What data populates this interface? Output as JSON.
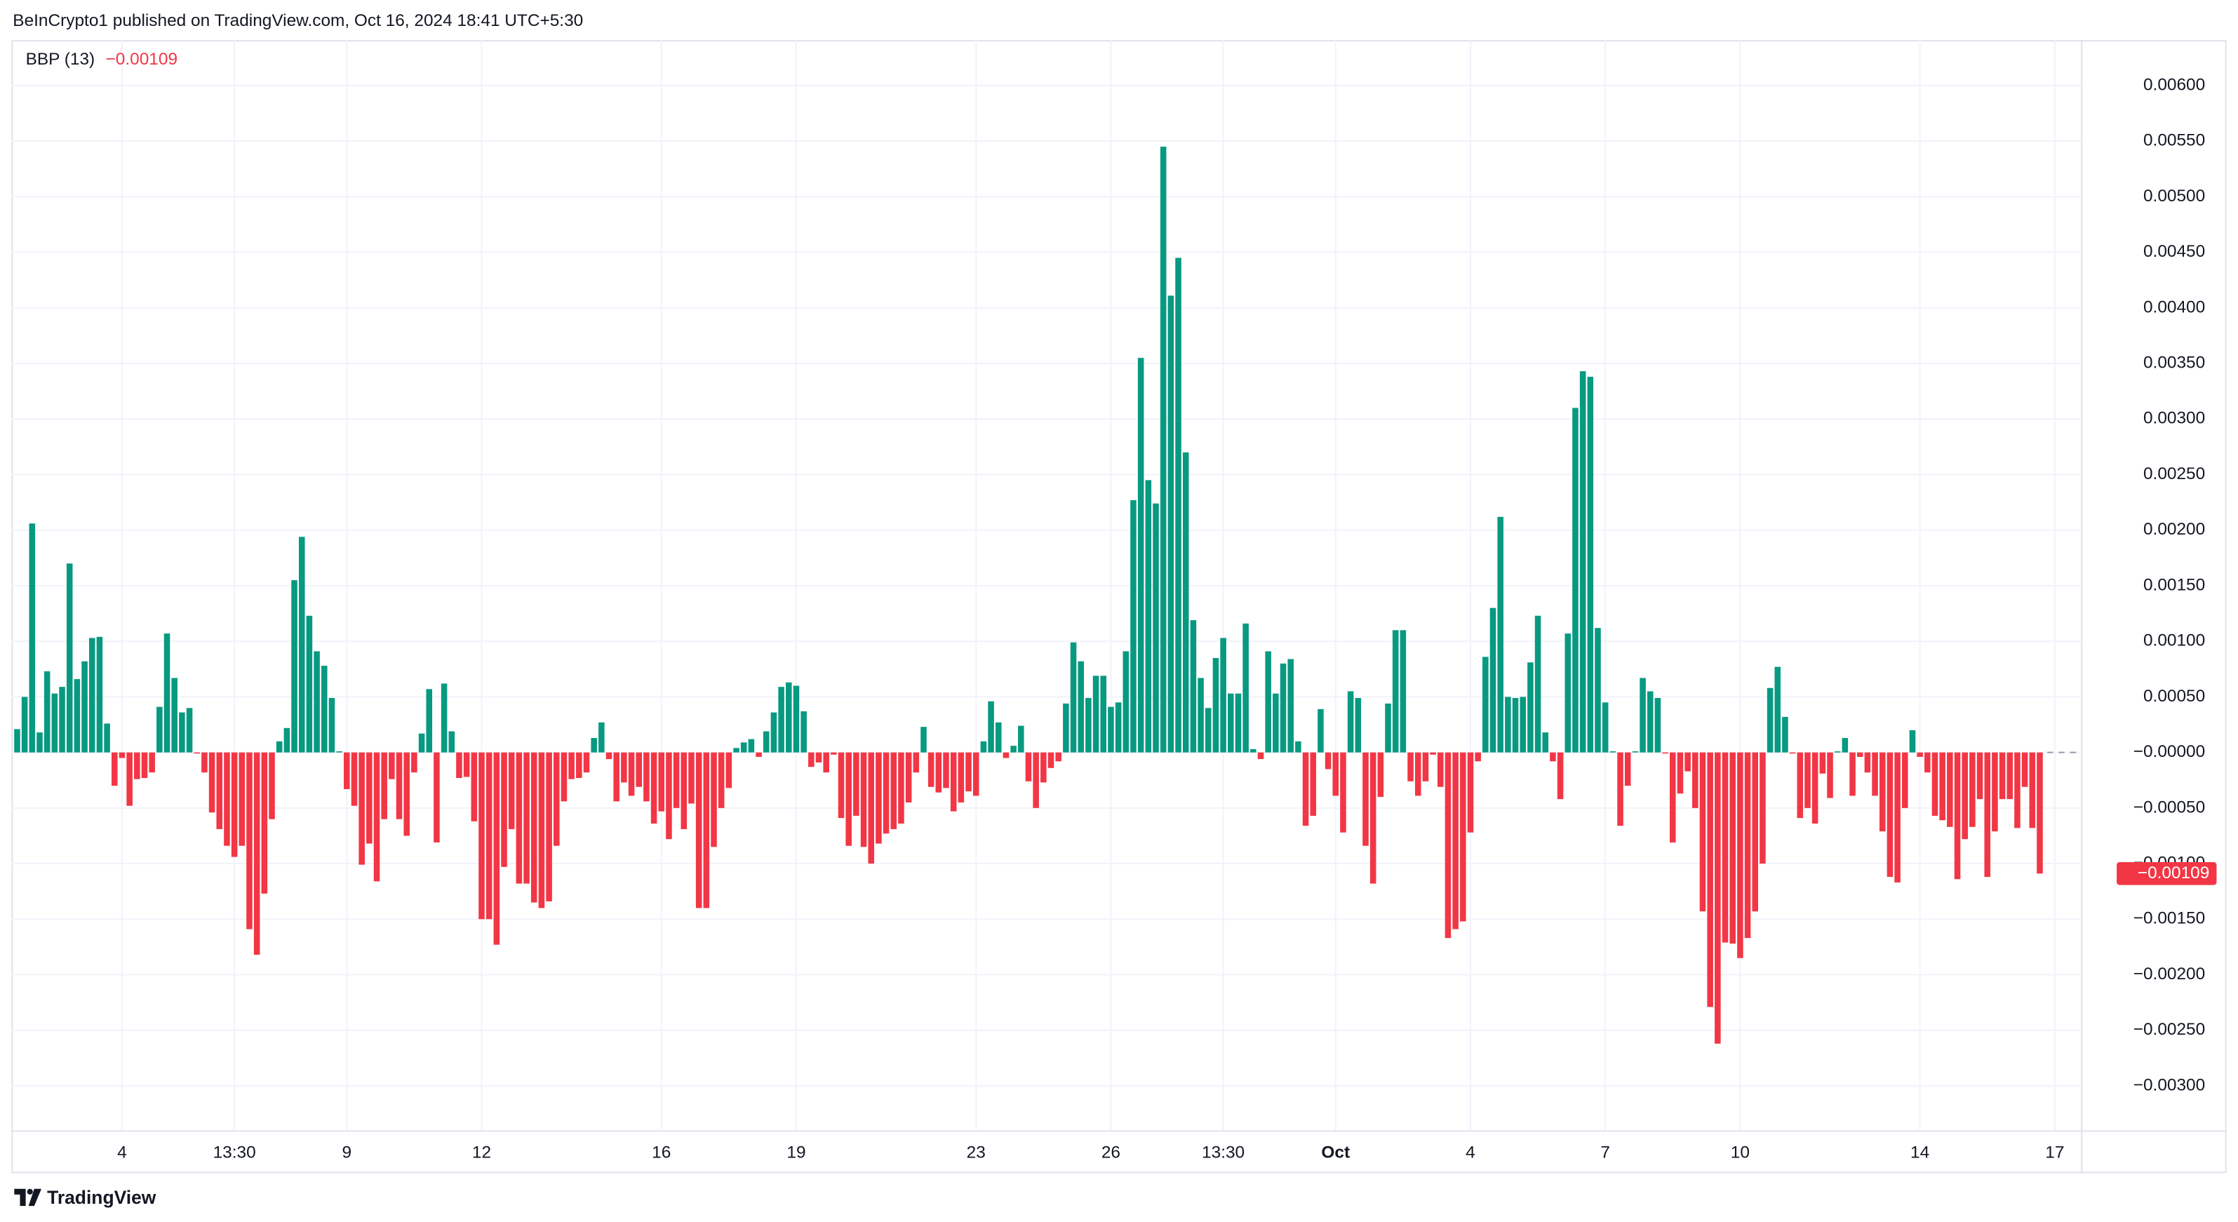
{
  "header": "BeInCrypto1 published on TradingView.com, Oct 16, 2024 18:41 UTC+5:30",
  "brand": "TradingView",
  "chart_data": {
    "type": "bar",
    "title": "BBP (13)",
    "last_value": {
      "value": -0.00109,
      "label": "−0.00109"
    },
    "positive_color": "#089981",
    "negative_color": "#f23645",
    "grid": true,
    "ylim": [
      -0.0034,
      0.00641
    ],
    "yticks": [
      {
        "value": 0.006,
        "label": "0.00600"
      },
      {
        "value": 0.0055,
        "label": "0.00550"
      },
      {
        "value": 0.005,
        "label": "0.00500"
      },
      {
        "value": 0.0045,
        "label": "0.00450"
      },
      {
        "value": 0.004,
        "label": "0.00400"
      },
      {
        "value": 0.0035,
        "label": "0.00350"
      },
      {
        "value": 0.003,
        "label": "0.00300"
      },
      {
        "value": 0.0025,
        "label": "0.00250"
      },
      {
        "value": 0.002,
        "label": "0.00200"
      },
      {
        "value": 0.0015,
        "label": "0.00150"
      },
      {
        "value": 0.001,
        "label": "0.00100"
      },
      {
        "value": 0.0005,
        "label": "0.00050"
      },
      {
        "value": 0,
        "label": "−0.00000"
      },
      {
        "value": -0.0005,
        "label": "−0.00050"
      },
      {
        "value": -0.001,
        "label": "−0.00100"
      },
      {
        "value": -0.0015,
        "label": "−0.00150"
      },
      {
        "value": -0.002,
        "label": "−0.00200"
      },
      {
        "value": -0.0025,
        "label": "−0.00250"
      },
      {
        "value": -0.003,
        "label": "−0.00300"
      }
    ],
    "categories": [
      null,
      null,
      null,
      null,
      null,
      null,
      null,
      null,
      null,
      null,
      null,
      null,
      null,
      null,
      "4",
      null,
      null,
      null,
      null,
      null,
      null,
      null,
      null,
      null,
      null,
      null,
      null,
      null,
      null,
      "13:30",
      null,
      null,
      null,
      null,
      null,
      null,
      null,
      null,
      null,
      null,
      null,
      null,
      null,
      null,
      "9",
      null,
      null,
      null,
      null,
      null,
      null,
      null,
      null,
      null,
      null,
      null,
      null,
      null,
      null,
      null,
      null,
      null,
      "12",
      null,
      null,
      null,
      null,
      null,
      null,
      null,
      null,
      null,
      null,
      null,
      null,
      null,
      null,
      null,
      null,
      null,
      null,
      null,
      null,
      null,
      null,
      null,
      "16",
      null,
      null,
      null,
      null,
      null,
      null,
      null,
      null,
      null,
      null,
      null,
      null,
      null,
      null,
      null,
      null,
      null,
      "19",
      null,
      null,
      null,
      null,
      null,
      null,
      null,
      null,
      null,
      null,
      null,
      null,
      null,
      null,
      null,
      null,
      null,
      null,
      null,
      null,
      null,
      null,
      null,
      "23",
      null,
      null,
      null,
      null,
      null,
      null,
      null,
      null,
      null,
      null,
      null,
      null,
      null,
      null,
      null,
      null,
      null,
      "26",
      null,
      null,
      null,
      null,
      null,
      null,
      null,
      null,
      null,
      null,
      null,
      null,
      null,
      null,
      "13:30",
      null,
      null,
      null,
      null,
      null,
      null,
      null,
      null,
      null,
      null,
      null,
      null,
      null,
      null,
      "Oct",
      null,
      null,
      null,
      null,
      null,
      null,
      null,
      null,
      null,
      null,
      null,
      null,
      null,
      null,
      null,
      null,
      null,
      "4",
      null,
      null,
      null,
      null,
      null,
      null,
      null,
      null,
      null,
      null,
      null,
      null,
      null,
      null,
      null,
      null,
      null,
      "7",
      null,
      null,
      null,
      null,
      null,
      null,
      null,
      null,
      null,
      null,
      null,
      null,
      null,
      null,
      null,
      null,
      null,
      "10",
      null,
      null,
      null,
      null,
      null,
      null,
      null,
      null,
      null,
      null,
      null,
      null,
      null,
      null,
      null,
      null,
      null,
      null,
      null,
      null,
      null,
      null,
      null,
      "14",
      null,
      null,
      null,
      null,
      null,
      null,
      null,
      null,
      null,
      null,
      null,
      null,
      null,
      null,
      null,
      null,
      null,
      "17",
      null,
      null,
      null
    ],
    "values": [
      0.00021,
      0.0005,
      0.00206,
      0.00018,
      0.00073,
      0.00053,
      0.00059,
      0.0017,
      0.00066,
      0.00082,
      0.00103,
      0.00104,
      0.00026,
      -0.0003,
      -5e-05,
      -0.00048,
      -0.00024,
      -0.00023,
      -0.00018,
      0.00041,
      0.00107,
      0.00067,
      0.00036,
      0.0004,
      -1e-05,
      -0.00018,
      -0.00054,
      -0.00069,
      -0.00084,
      -0.00094,
      -0.00084,
      -0.00159,
      -0.00182,
      -0.00127,
      -0.0006,
      0.0001,
      0.00022,
      0.00155,
      0.00194,
      0.00123,
      0.00091,
      0.00078,
      0.00049,
      1e-05,
      -0.00033,
      -0.00048,
      -0.00101,
      -0.00082,
      -0.00116,
      -0.0006,
      -0.00024,
      -0.0006,
      -0.00075,
      -0.00018,
      0.00017,
      0.00057,
      -0.00081,
      0.00062,
      0.00019,
      -0.00023,
      -0.00022,
      -0.00062,
      -0.0015,
      -0.0015,
      -0.00173,
      -0.00103,
      -0.00069,
      -0.00118,
      -0.00118,
      -0.00135,
      -0.0014,
      -0.00134,
      -0.00084,
      -0.00044,
      -0.00024,
      -0.00023,
      -0.00018,
      0.00013,
      0.00027,
      -6e-05,
      -0.00044,
      -0.00027,
      -0.00039,
      -0.00031,
      -0.00044,
      -0.00064,
      -0.00053,
      -0.00078,
      -0.0005,
      -0.00069,
      -0.00046,
      -0.0014,
      -0.0014,
      -0.00085,
      -0.0005,
      -0.00032,
      4e-05,
      9e-05,
      0.00012,
      -4e-05,
      0.00019,
      0.00036,
      0.00059,
      0.00063,
      0.0006,
      0.00037,
      -0.00013,
      -9e-05,
      -0.00018,
      -2e-05,
      -0.00059,
      -0.00084,
      -0.00057,
      -0.00085,
      -0.001,
      -0.00082,
      -0.00073,
      -0.00069,
      -0.00064,
      -0.00045,
      -0.00018,
      0.00023,
      -0.00031,
      -0.00036,
      -0.00032,
      -0.00053,
      -0.00045,
      -0.00035,
      -0.00039,
      0.0001,
      0.00046,
      0.00027,
      -5e-05,
      6e-05,
      0.00024,
      -0.00026,
      -0.0005,
      -0.00027,
      -0.00014,
      -8e-05,
      0.00044,
      0.00099,
      0.00082,
      0.00049,
      0.00069,
      0.00069,
      0.00041,
      0.00045,
      0.00091,
      0.00227,
      0.00355,
      0.00245,
      0.00224,
      0.00545,
      0.00411,
      0.00445,
      0.0027,
      0.00119,
      0.00067,
      0.0004,
      0.00085,
      0.00103,
      0.00053,
      0.00053,
      0.00116,
      3e-05,
      -6e-05,
      0.00091,
      0.00053,
      0.0008,
      0.00084,
      0.0001,
      -0.00066,
      -0.00057,
      0.00039,
      -0.00015,
      -0.00039,
      -0.00072,
      0.00055,
      0.00049,
      -0.00084,
      -0.00118,
      -0.0004,
      0.00044,
      0.0011,
      0.0011,
      -0.00026,
      -0.00039,
      -0.00026,
      -2e-05,
      -0.00031,
      -0.00167,
      -0.00159,
      -0.00152,
      -0.00072,
      -8e-05,
      0.00086,
      0.0013,
      0.00212,
      0.0005,
      0.00049,
      0.0005,
      0.00081,
      0.00123,
      0.00018,
      -8e-05,
      -0.00042,
      0.00107,
      0.0031,
      0.00343,
      0.00338,
      0.00112,
      0.00045,
      1e-05,
      -0.00066,
      -0.0003,
      1e-05,
      0.00067,
      0.00055,
      0.00049,
      -1e-05,
      -0.00081,
      -0.00037,
      -0.00017,
      -0.0005,
      -0.00143,
      -0.00229,
      -0.00262,
      -0.00171,
      -0.00172,
      -0.00185,
      -0.00167,
      -0.00143,
      -0.001,
      0.00058,
      0.00077,
      0.00032,
      -1e-05,
      -0.00059,
      -0.0005,
      -0.00064,
      -0.00019,
      -0.00041,
      1e-05,
      0.00013,
      -0.00039,
      -4e-05,
      -0.00018,
      -0.00039,
      -0.00071,
      -0.00112,
      -0.00117,
      -0.0005,
      0.0002,
      -4e-05,
      -0.00018,
      -0.00057,
      -0.00061,
      -0.00067,
      -0.00114,
      -0.00078,
      -0.00067,
      -0.00042,
      -0.00112,
      -0.00071,
      -0.00042,
      -0.00042,
      -0.00068,
      -0.00031,
      -0.00068,
      -0.00109,
      null,
      null,
      null,
      null,
      null
    ]
  }
}
